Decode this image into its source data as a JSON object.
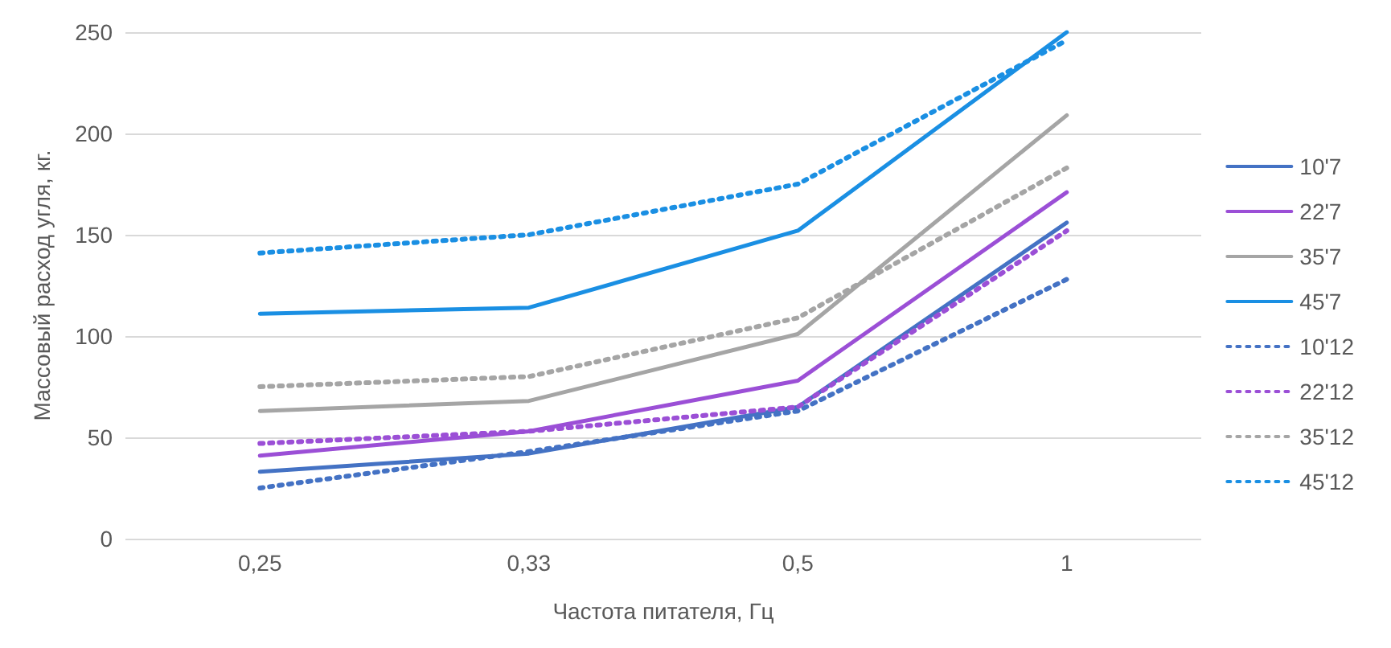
{
  "chart_data": {
    "type": "line",
    "xlabel": "Частота питателя, Гц",
    "ylabel": "Массовый расход угля, кг.",
    "categories": [
      "0,25",
      "0,33",
      "0,5",
      "1"
    ],
    "series": [
      {
        "name": "10'7",
        "color": "#4472c4",
        "line_style": "solid",
        "values": [
          33,
          42,
          65,
          156
        ]
      },
      {
        "name": "22'7",
        "color": "#9b4fd6",
        "line_style": "solid",
        "values": [
          41,
          53,
          78,
          171
        ]
      },
      {
        "name": "35'7",
        "color": "#a5a5a5",
        "line_style": "solid",
        "values": [
          63,
          68,
          101,
          209
        ]
      },
      {
        "name": "45'7",
        "color": "#1a8fe3",
        "line_style": "solid",
        "values": [
          111,
          114,
          152,
          250
        ]
      },
      {
        "name": "10'12",
        "color": "#4472c4",
        "line_style": "dotted",
        "values": [
          25,
          43,
          63,
          128
        ]
      },
      {
        "name": "22'12",
        "color": "#9b4fd6",
        "line_style": "dotted",
        "values": [
          47,
          53,
          65,
          152
        ]
      },
      {
        "name": "35'12",
        "color": "#a5a5a5",
        "line_style": "dotted",
        "values": [
          75,
          80,
          109,
          183
        ]
      },
      {
        "name": "45'12",
        "color": "#1a8fe3",
        "line_style": "dotted",
        "values": [
          141,
          150,
          175,
          246
        ]
      }
    ],
    "ylim": [
      0,
      250
    ],
    "yticks": [
      0,
      50,
      100,
      150,
      200,
      250
    ],
    "grid": "y",
    "legend": "right",
    "marker": "none"
  }
}
